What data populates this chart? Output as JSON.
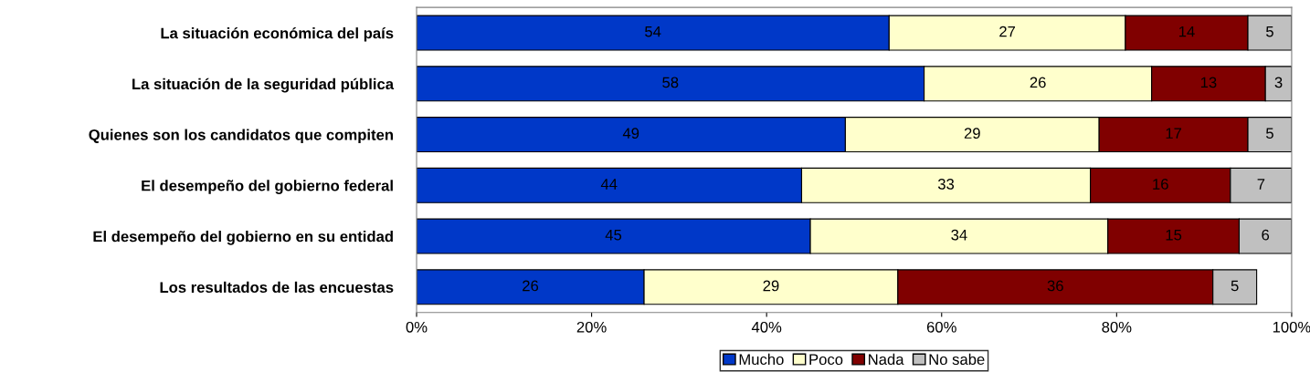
{
  "chart_data": {
    "type": "bar",
    "orientation": "horizontal",
    "stacked": true,
    "data_labels": true,
    "grid": false,
    "legend": "bottom",
    "categories": [
      "La situación económica del país",
      "La situación de la seguridad pública",
      "Quienes son los candidatos que compiten",
      "El desempeño del gobierno federal",
      "El desempeño del gobierno en su entidad",
      "Los resultados de las encuestas"
    ],
    "series": [
      {
        "name": "Mucho",
        "color": "#0038c8",
        "values": [
          54,
          58,
          49,
          44,
          45,
          26
        ]
      },
      {
        "name": "Poco",
        "color": "#ffffcc",
        "values": [
          27,
          26,
          29,
          33,
          34,
          29
        ]
      },
      {
        "name": "Nada",
        "color": "#800000",
        "values": [
          14,
          13,
          17,
          16,
          15,
          36
        ]
      },
      {
        "name": "No sabe",
        "color": "#c0c0c0",
        "values": [
          5,
          3,
          5,
          7,
          6,
          5
        ]
      }
    ],
    "xlim": [
      0,
      100
    ],
    "xticks": [
      {
        "value": 0,
        "label": "0%"
      },
      {
        "value": 20,
        "label": "20%"
      },
      {
        "value": 40,
        "label": "40%"
      },
      {
        "value": 60,
        "label": "60%"
      },
      {
        "value": 80,
        "label": "80%"
      },
      {
        "value": 100,
        "label": "100%"
      }
    ]
  }
}
